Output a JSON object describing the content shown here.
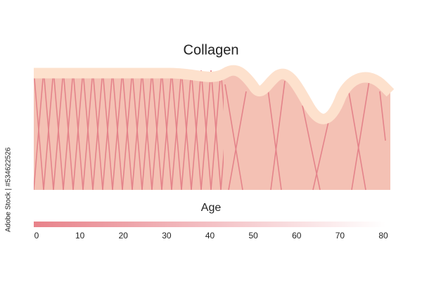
{
  "title": "Collagen",
  "axis": {
    "label": "Age",
    "ticks": [
      0,
      10,
      20,
      30,
      40,
      50,
      60,
      70,
      80
    ]
  },
  "watermark": "Adobe Stock | #534622526"
}
